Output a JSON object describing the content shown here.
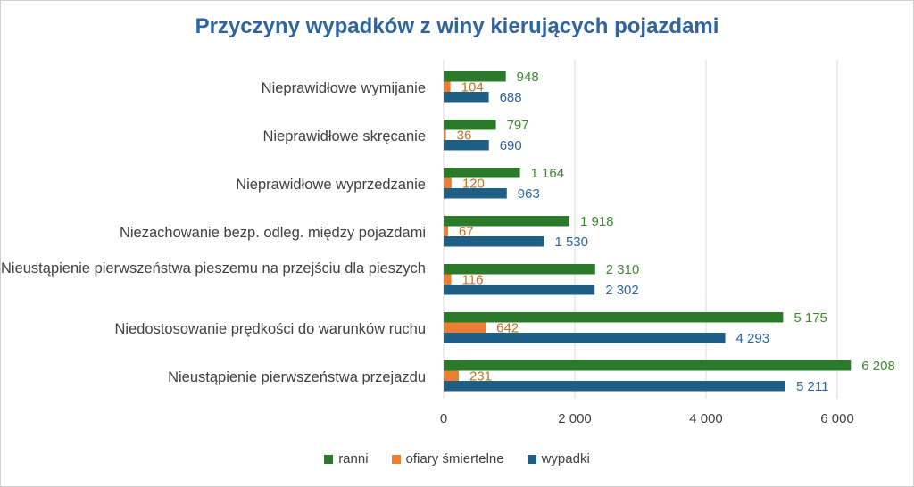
{
  "chart_data": {
    "type": "bar",
    "orientation": "horizontal",
    "title": "Przyczyny wypadków z winy kierujących pojazdami",
    "categories": [
      "Nieprawidłowe wymijanie",
      "Nieprawidłowe skręcanie",
      "Nieprawidłowe wyprzedzanie",
      "Niezachowanie bezp. odleg. między pojazdami",
      "Nieustąpienie pierwszeństwa pieszemu na przejściu dla pieszych",
      "Niedostosowanie prędkości do warunków ruchu",
      "Nieustąpienie pierwszeństwa przejazdu"
    ],
    "series": [
      {
        "name": "ranni",
        "color": "#2a7a2a",
        "label_color": "#3d8b2f",
        "values": [
          948,
          797,
          1164,
          1918,
          2310,
          5175,
          6208
        ],
        "labels": [
          "948",
          "797",
          "1 164",
          "1 918",
          "2 310",
          "5 175",
          "6 208"
        ]
      },
      {
        "name": "ofiary śmiertelne",
        "color": "#ed7d31",
        "label_color": "#c5701f",
        "values": [
          104,
          36,
          120,
          67,
          116,
          642,
          231
        ],
        "labels": [
          "104",
          "36",
          "120",
          "67",
          "116",
          "642",
          "231"
        ]
      },
      {
        "name": "wypadki",
        "color": "#1f5f86",
        "label_color": "#2e64a0",
        "values": [
          688,
          690,
          963,
          1530,
          2302,
          4293,
          5211
        ],
        "labels": [
          "688",
          "690",
          "963",
          "1 530",
          "2 302",
          "4 293",
          "5 211"
        ]
      }
    ],
    "x_ticks": [
      0,
      2000,
      4000,
      6000
    ],
    "x_tick_labels": [
      "0",
      "2 000",
      "4 000",
      "6 000"
    ],
    "xlim": [
      0,
      7000
    ],
    "grid": "vertical",
    "legend": "bottom"
  }
}
